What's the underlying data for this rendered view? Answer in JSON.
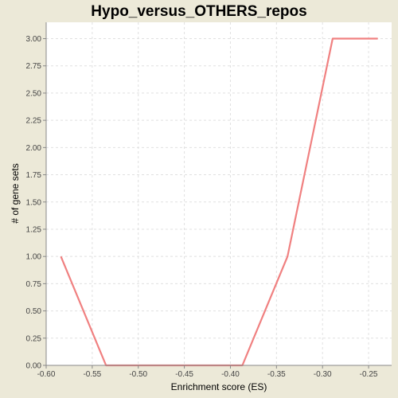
{
  "chart_data": {
    "type": "line",
    "title": "Hypo_versus_OTHERS_repos",
    "xlabel": "Enrichment score (ES)",
    "ylabel": "# of gene sets",
    "xlim": [
      -0.6,
      -0.225
    ],
    "ylim": [
      0,
      3.15
    ],
    "x_ticks": [
      -0.6,
      -0.55,
      -0.5,
      -0.45,
      -0.4,
      -0.35,
      -0.3,
      -0.25
    ],
    "x_tick_labels": [
      "-0.60",
      "-0.55",
      "-0.50",
      "-0.45",
      "-0.40",
      "-0.35",
      "-0.30",
      "-0.25"
    ],
    "y_ticks": [
      0,
      0.25,
      0.5,
      0.75,
      1.0,
      1.25,
      1.5,
      1.75,
      2.0,
      2.25,
      2.5,
      2.75,
      3.0
    ],
    "y_tick_labels": [
      "0.00",
      "0.25",
      "0.50",
      "0.75",
      "1.00",
      "1.25",
      "1.50",
      "1.75",
      "2.00",
      "2.25",
      "2.50",
      "2.75",
      "3.00"
    ],
    "grid": true,
    "series": [
      {
        "color": "#F08080",
        "x": [
          -0.584,
          -0.535,
          -0.486,
          -0.437,
          -0.387,
          -0.338,
          -0.289,
          -0.24
        ],
        "values": [
          1,
          0,
          0,
          0,
          0,
          1,
          3,
          3
        ]
      }
    ]
  },
  "colors": {
    "background": "#ECE9D8",
    "plot_background": "#FFFFFF",
    "grid": "#E0E0E0",
    "axis": "#888888",
    "series": "#F08080"
  }
}
